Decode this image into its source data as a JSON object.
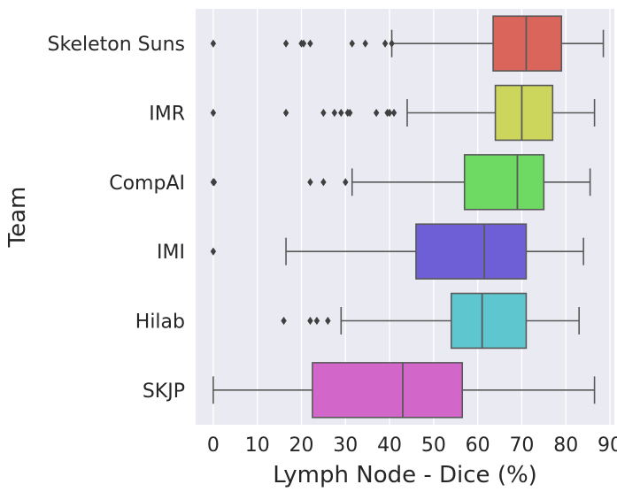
{
  "chart_data": {
    "type": "boxplot",
    "orientation": "horizontal",
    "title": "",
    "xlabel": "Lymph Node - Dice (%)",
    "ylabel": "Team",
    "xlim": [
      -4,
      91
    ],
    "xticks": [
      0,
      10,
      20,
      30,
      40,
      50,
      60,
      70,
      80,
      90
    ],
    "grid": true,
    "background": "#EAEAF2",
    "categories": [
      "Skeleton Suns",
      "IMR",
      "CompAI",
      "IMI",
      "Hilab",
      "SKJP"
    ],
    "series": [
      {
        "category": "Skeleton Suns",
        "color": "#D9655B",
        "whisker_low": 40.5,
        "q1": 63.5,
        "median": 71.0,
        "q3": 79.0,
        "whisker_high": 88.5,
        "outliers": [
          0,
          16.5,
          20,
          20.5,
          22,
          31.5,
          34.5,
          39,
          40.5
        ]
      },
      {
        "category": "IMR",
        "color": "#CCD65C",
        "whisker_low": 44.0,
        "q1": 64.0,
        "median": 70.0,
        "q3": 77.0,
        "whisker_high": 86.5,
        "outliers": [
          0,
          16.5,
          25,
          27.5,
          29,
          30.5,
          31,
          37,
          39.5,
          40,
          41
        ]
      },
      {
        "category": "CompAI",
        "color": "#6ED963",
        "whisker_low": 31.5,
        "q1": 57.0,
        "median": 69.0,
        "q3": 75.0,
        "whisker_high": 85.5,
        "outliers": [
          0,
          0.2,
          22,
          25,
          30
        ]
      },
      {
        "category": "IMI",
        "color": "#6E5FD6",
        "whisker_low": 16.5,
        "q1": 46.0,
        "median": 61.5,
        "q3": 71.0,
        "whisker_high": 84.0,
        "outliers": [
          0
        ]
      },
      {
        "category": "Hilab",
        "color": "#5DC6CF",
        "whisker_low": 29.0,
        "q1": 54.0,
        "median": 61.0,
        "q3": 71.0,
        "whisker_high": 83.0,
        "outliers": [
          16,
          22,
          23.5,
          26
        ]
      },
      {
        "category": "SKJP",
        "color": "#D266C9",
        "whisker_low": 0,
        "q1": 22.5,
        "median": 43.0,
        "q3": 56.5,
        "whisker_high": 86.5,
        "outliers": []
      }
    ]
  }
}
